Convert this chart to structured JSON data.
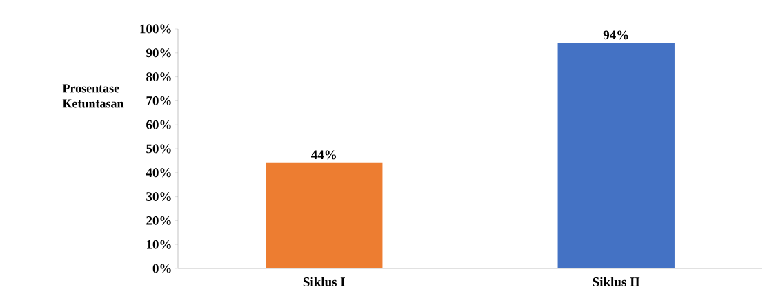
{
  "chart_data": {
    "type": "bar",
    "ylabel": "Prosentase Ketuntasan",
    "categories": [
      "Siklus I",
      "Siklus II"
    ],
    "values": [
      44,
      94
    ],
    "colors": [
      "#ed7d31",
      "#4472c4"
    ],
    "value_labels": [
      "44%",
      "94%"
    ],
    "ylim": [
      0,
      100
    ],
    "yticks": [
      {
        "value": 0,
        "label": "0%"
      },
      {
        "value": 10,
        "label": "10%"
      },
      {
        "value": 20,
        "label": "20%"
      },
      {
        "value": 30,
        "label": "30%"
      },
      {
        "value": 40,
        "label": "40%"
      },
      {
        "value": 50,
        "label": "50%"
      },
      {
        "value": 60,
        "label": "60%"
      },
      {
        "value": 70,
        "label": "70%"
      },
      {
        "value": 80,
        "label": "80%"
      },
      {
        "value": 90,
        "label": "90%"
      },
      {
        "value": 100,
        "label": "100%"
      }
    ],
    "grid": false
  }
}
